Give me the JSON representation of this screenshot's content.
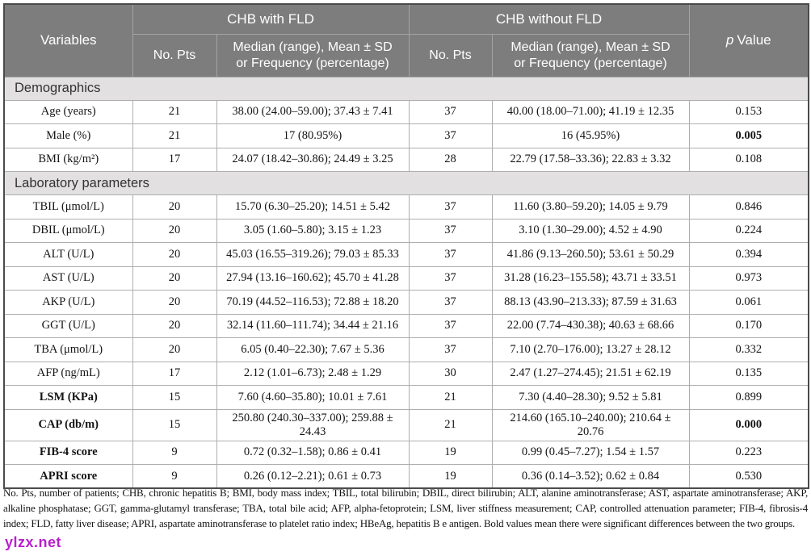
{
  "table": {
    "header": {
      "variables_label": "Variables",
      "group_with": "CHB with FLD",
      "group_without": "CHB without FLD",
      "p_label": "p",
      "value_label": "Value",
      "no_pts_label": "No. Pts",
      "stat_line1": "Median (range), Mean ± SD",
      "stat_line2": "or Frequency (percentage)"
    },
    "sections": [
      {
        "title": "Demographics",
        "rows": [
          {
            "variable": "Age (years)",
            "bold_variable": false,
            "n_with": "21",
            "stat_with": "38.00 (24.00–59.00); 37.43 ± 7.41",
            "n_without": "37",
            "stat_without": "40.00 (18.00–71.00); 41.19 ± 12.35",
            "p": "0.153",
            "bold_p": false
          },
          {
            "variable": "Male (%)",
            "bold_variable": false,
            "n_with": "21",
            "stat_with": "17 (80.95%)",
            "n_without": "37",
            "stat_without": "16 (45.95%)",
            "p": "0.005",
            "bold_p": true
          },
          {
            "variable": "BMI (kg/m²)",
            "bold_variable": false,
            "n_with": "17",
            "stat_with": "24.07 (18.42–30.86); 24.49 ± 3.25",
            "n_without": "28",
            "stat_without": "22.79 (17.58–33.36); 22.83 ± 3.32",
            "p": "0.108",
            "bold_p": false
          }
        ]
      },
      {
        "title": "Laboratory parameters",
        "rows": [
          {
            "variable": "TBIL (μmol/L)",
            "bold_variable": false,
            "n_with": "20",
            "stat_with": "15.70 (6.30–25.20); 14.51 ± 5.42",
            "n_without": "37",
            "stat_without": "11.60 (3.80–59.20); 14.05 ± 9.79",
            "p": "0.846",
            "bold_p": false
          },
          {
            "variable": "DBIL (μmol/L)",
            "bold_variable": false,
            "n_with": "20",
            "stat_with": "3.05 (1.60–5.80); 3.15 ± 1.23",
            "n_without": "37",
            "stat_without": "3.10 (1.30–29.00); 4.52 ± 4.90",
            "p": "0.224",
            "bold_p": false
          },
          {
            "variable": "ALT (U/L)",
            "bold_variable": false,
            "n_with": "20",
            "stat_with": "45.03 (16.55–319.26); 79.03 ± 85.33",
            "n_without": "37",
            "stat_without": "41.86 (9.13–260.50); 53.61 ± 50.29",
            "p": "0.394",
            "bold_p": false
          },
          {
            "variable": "AST (U/L)",
            "bold_variable": false,
            "n_with": "20",
            "stat_with": "27.94 (13.16–160.62); 45.70 ± 41.28",
            "n_without": "37",
            "stat_without": "31.28 (16.23–155.58); 43.71 ± 33.51",
            "p": "0.973",
            "bold_p": false
          },
          {
            "variable": "AKP (U/L)",
            "bold_variable": false,
            "n_with": "20",
            "stat_with": "70.19 (44.52–116.53); 72.88 ± 18.20",
            "n_without": "37",
            "stat_without": "88.13 (43.90–213.33); 87.59 ± 31.63",
            "p": "0.061",
            "bold_p": false
          },
          {
            "variable": "GGT (U/L)",
            "bold_variable": false,
            "n_with": "20",
            "stat_with": "32.14 (11.60–111.74); 34.44 ± 21.16",
            "n_without": "37",
            "stat_without": "22.00 (7.74–430.38); 40.63 ± 68.66",
            "p": "0.170",
            "bold_p": false
          },
          {
            "variable": "TBA (μmol/L)",
            "bold_variable": false,
            "n_with": "20",
            "stat_with": "6.05 (0.40–22.30); 7.67 ± 5.36",
            "n_without": "37",
            "stat_without": "7.10 (2.70–176.00); 13.27 ± 28.12",
            "p": "0.332",
            "bold_p": false
          },
          {
            "variable": "AFP (ng/mL)",
            "bold_variable": false,
            "n_with": "17",
            "stat_with": "2.12 (1.01–6.73); 2.48 ± 1.29",
            "n_without": "30",
            "stat_without": "2.47 (1.27–274.45); 21.51 ± 62.19",
            "p": "0.135",
            "bold_p": false
          },
          {
            "variable": "LSM (KPa)",
            "bold_variable": true,
            "n_with": "15",
            "stat_with": "7.60 (4.60–35.80); 10.01 ± 7.61",
            "n_without": "21",
            "stat_without": "7.30 (4.40–28.30); 9.52 ± 5.81",
            "p": "0.899",
            "bold_p": false
          },
          {
            "variable": "CAP (db/m)",
            "bold_variable": true,
            "n_with": "15",
            "stat_with": "250.80 (240.30–337.00); 259.88 ± 24.43",
            "n_without": "21",
            "stat_without": "214.60 (165.10–240.00); 210.64 ± 20.76",
            "p": "0.000",
            "bold_p": true
          },
          {
            "variable": "FIB-4 score",
            "bold_variable": true,
            "n_with": "9",
            "stat_with": "0.72 (0.32–1.58); 0.86 ± 0.41",
            "n_without": "19",
            "stat_without": "0.99 (0.45–7.27); 1.54 ± 1.57",
            "p": "0.223",
            "bold_p": false
          },
          {
            "variable": "APRI score",
            "bold_variable": true,
            "n_with": "9",
            "stat_with": "0.26 (0.12–2.21); 0.61 ± 0.73",
            "n_without": "19",
            "stat_without": "0.36 (0.14–3.52); 0.62 ± 0.84",
            "p": "0.530",
            "bold_p": false
          }
        ]
      }
    ]
  },
  "footnote": "No. Pts, number of patients; CHB, chronic hepatitis B; BMI, body mass index; TBIL, total bilirubin; DBIL, direct bilirubin; ALT, alanine aminotransferase; AST, aspartate aminotransferase; AKP, alkaline phosphatase; GGT, gamma-glutamyl transferase; TBA, total bile acid; AFP, alpha-fetoprotein; LSM, liver stiffness measurement; CAP, controlled attenuation parameter; FIB-4, fibrosis-4 index; FLD, fatty liver disease; APRI, aspartate aminotransferase to platelet ratio index; HBeAg, hepatitis B e antigen. Bold values mean there were significant differences between the two groups.",
  "watermark": "ylzx.net",
  "colors": {
    "header_bg": "#7d7d7d",
    "header_text": "#ffffff",
    "header_divider": "#a3a3a3",
    "section_bg": "#e2e0e0",
    "row_border": "#aeaeae",
    "table_outer": "#4b4b4b",
    "watermark_color": "#b820cc"
  }
}
